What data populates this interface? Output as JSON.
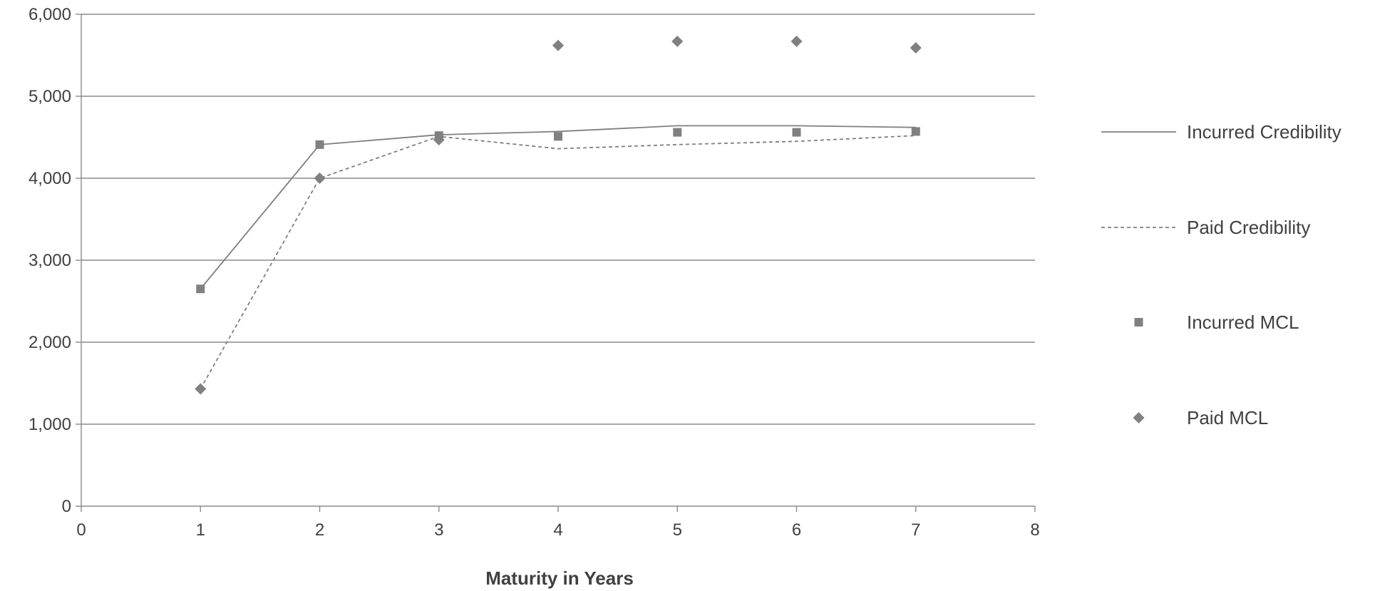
{
  "chart_data": {
    "type": "line",
    "title": "",
    "xlabel": "Maturity in Years",
    "ylabel": "",
    "xlim": [
      0,
      8
    ],
    "ylim": [
      0,
      6000
    ],
    "xticks": [
      0,
      1,
      2,
      3,
      4,
      5,
      6,
      7,
      8
    ],
    "yticks": [
      0,
      1000,
      2000,
      3000,
      4000,
      5000,
      6000
    ],
    "ytick_labels": [
      "0",
      "1,000",
      "2,000",
      "3,000",
      "4,000",
      "5,000",
      "6,000"
    ],
    "grid": "horizontal",
    "legend_position": "right",
    "series": [
      {
        "name": "Incurred Credibility",
        "style": "solid-line",
        "color": "#7f7f7f",
        "x": [
          1,
          2,
          3,
          4,
          5,
          6,
          7
        ],
        "y": [
          2650,
          4410,
          4530,
          4570,
          4640,
          4640,
          4620
        ]
      },
      {
        "name": "Paid Credibility",
        "style": "dashed-line",
        "color": "#7f7f7f",
        "x": [
          1,
          2,
          3,
          4,
          5,
          6,
          7
        ],
        "y": [
          1430,
          4000,
          4510,
          4360,
          4410,
          4450,
          4520
        ]
      },
      {
        "name": "Incurred MCL",
        "style": "square-marker",
        "color": "#808080",
        "x": [
          1,
          2,
          3,
          4,
          5,
          6,
          7
        ],
        "y": [
          2650,
          4410,
          4520,
          4510,
          4560,
          4560,
          4570
        ]
      },
      {
        "name": "Paid MCL",
        "style": "diamond-marker",
        "color": "#808080",
        "x": [
          1,
          2,
          3,
          4,
          5,
          6,
          7
        ],
        "y": [
          1430,
          4000,
          4470,
          5620,
          5670,
          5670,
          5590
        ]
      }
    ]
  }
}
